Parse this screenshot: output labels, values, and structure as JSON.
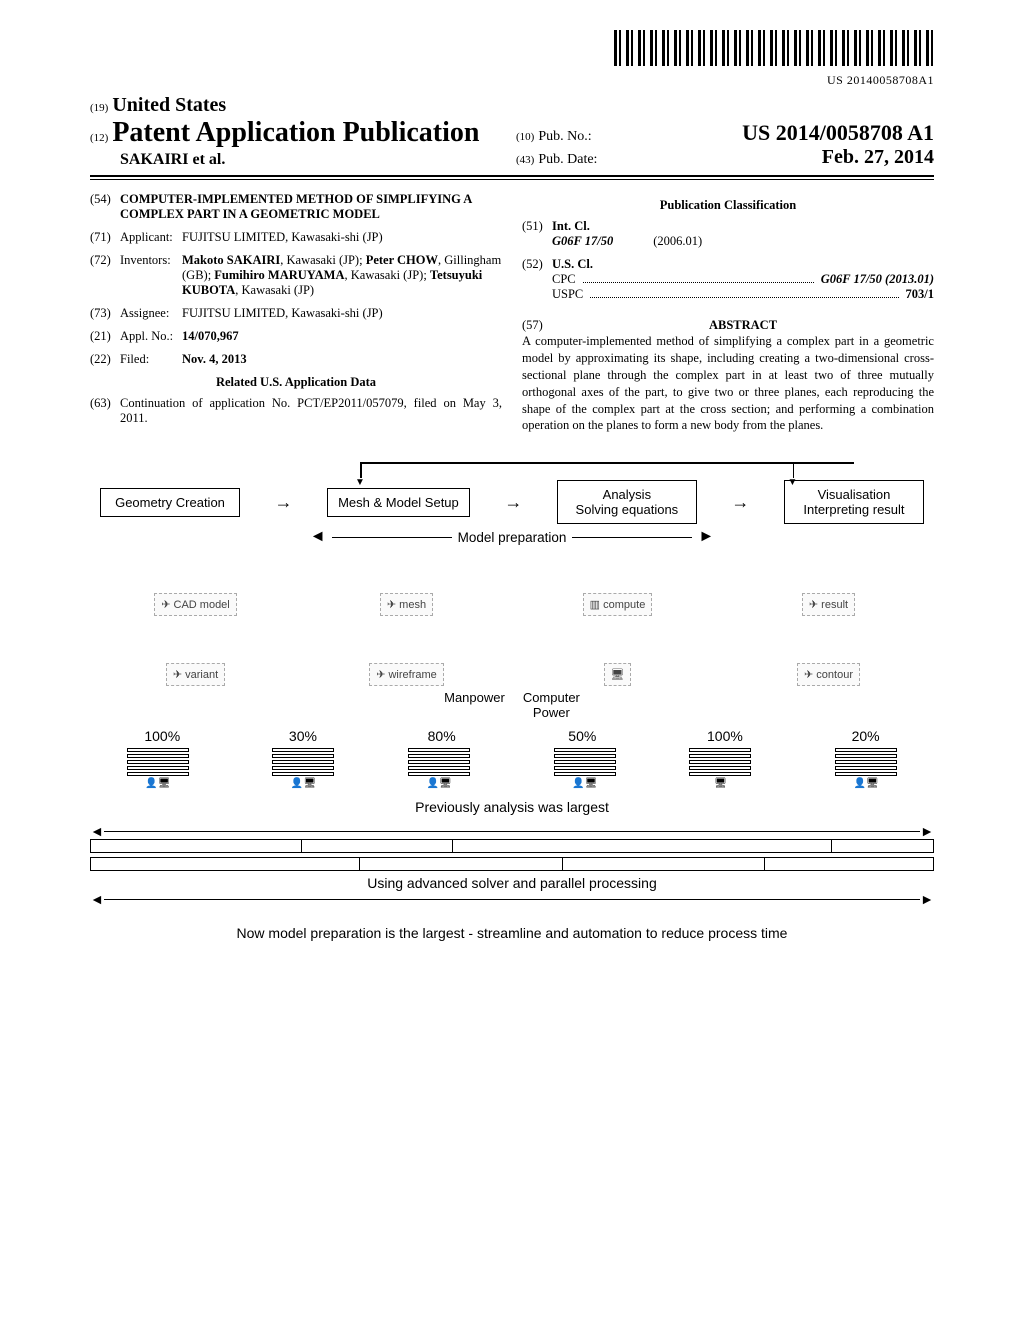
{
  "barcode_text": "US 20140058708A1",
  "header": {
    "num19": "(19)",
    "country": "United States",
    "num12": "(12)",
    "pub_type": "Patent Application Publication",
    "applicant_line": "SAKAIRI et al.",
    "num10": "(10)",
    "pub_no_label": "Pub. No.:",
    "pub_no": "US 2014/0058708 A1",
    "num43": "(43)",
    "pub_date_label": "Pub. Date:",
    "pub_date": "Feb. 27, 2014"
  },
  "f54": {
    "num": "(54)",
    "title": "COMPUTER-IMPLEMENTED METHOD OF SIMPLIFYING A COMPLEX PART IN A GEOMETRIC MODEL"
  },
  "f71": {
    "num": "(71)",
    "label": "Applicant:",
    "val": "FUJITSU LIMITED, Kawasaki-shi (JP)"
  },
  "f72": {
    "num": "(72)",
    "label": "Inventors:",
    "v1": "Makoto SAKAIRI",
    "l1": ", Kawasaki (JP);",
    "v2": "Peter CHOW",
    "l2": ", Gillingham (GB);",
    "v3": "Fumihiro MARUYAMA",
    "l3": ", Kawasaki (JP);",
    "v4": "Tetsuyuki KUBOTA",
    "l4": ", Kawasaki (JP)"
  },
  "f73": {
    "num": "(73)",
    "label": "Assignee:",
    "val": "FUJITSU LIMITED, Kawasaki-shi (JP)"
  },
  "f21": {
    "num": "(21)",
    "label": "Appl. No.:",
    "val": "14/070,967"
  },
  "f22": {
    "num": "(22)",
    "label": "Filed:",
    "val": "Nov. 4, 2013"
  },
  "related_hdr": "Related U.S. Application Data",
  "f63": {
    "num": "(63)",
    "val": "Continuation of application No. PCT/EP2011/057079, filed on May 3, 2011."
  },
  "class_hdr": "Publication Classification",
  "f51": {
    "num": "(51)",
    "label": "Int. Cl.",
    "code": "G06F 17/50",
    "date": "(2006.01)"
  },
  "f52": {
    "num": "(52)",
    "label": "U.S. Cl.",
    "cpc_l": "CPC",
    "cpc_r": "G06F 17/50 (2013.01)",
    "uspc_l": "USPC",
    "uspc_r": "703/1"
  },
  "f57": {
    "num": "(57)",
    "label": "ABSTRACT"
  },
  "abstract": "A computer-implemented method of simplifying a complex part in a geometric model by approximating its shape, including creating a two-dimensional cross-sectional plane through the complex part in at least two of three mutually orthogonal axes of the part, to give two or three planes, each reproducing the shape of the complex part at the cross section; and performing a combination operation on the planes to form a new body from the planes.",
  "figure": {
    "boxes": [
      "Geometry Creation",
      "Mesh & Model Setup",
      "Analysis\nSolving equations",
      "Visualisation\nInterpreting result"
    ],
    "model_prep": "Model preparation",
    "manpower": "Manpower",
    "computer_power": "Computer\nPower",
    "pcts": [
      "100%",
      "30%",
      "80%",
      "50%",
      "100%",
      "20%"
    ],
    "prev_label": "Previously analysis was largest",
    "solver_label": "Using advanced solver and parallel processing",
    "caption": "Now model preparation is the largest - streamline and automation to reduce process time",
    "timeline1_segs": [
      25,
      18,
      45,
      12
    ],
    "timeline2_segs": [
      32,
      24,
      24,
      20
    ],
    "colors": {
      "box_border": "#000000",
      "bg": "#ffffff",
      "text": "#000000"
    }
  }
}
